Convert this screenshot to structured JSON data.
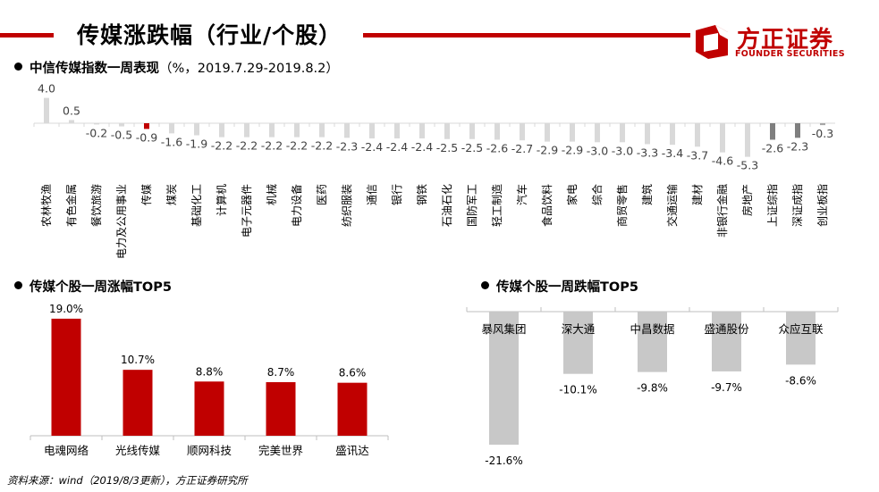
{
  "header": {
    "title": "传媒涨跌幅（行业/个股）"
  },
  "logo": {
    "name_cn": "方正证券",
    "name_en": "FOUNDER SECURITIES"
  },
  "colors": {
    "accent": "#c00000",
    "bar_gray": "#c8c8c8",
    "bar_dark": "#7f7f7f",
    "light_gray": "#d9d9d9"
  },
  "section1": {
    "title": "中信传媒指数一周表现",
    "subtitle": "（%，2019.7.29-2019.8.2）"
  },
  "section2": {
    "title": "传媒个股一周涨幅TOP5"
  },
  "section3": {
    "title": "传媒个股一周跌幅TOP5"
  },
  "footer": {
    "source": "资料来源：wind（2019/8/3更新），方正证券研究所"
  },
  "chart_data": [
    {
      "type": "bar",
      "categories": [
        "农林牧渔",
        "有色金属",
        "餐饮旅游",
        "电力及公用事业",
        "传媒",
        "煤炭",
        "基础化工",
        "计算机",
        "电子元器件",
        "机械",
        "电力设备",
        "医药",
        "纺织服装",
        "通信",
        "银行",
        "钢铁",
        "石油石化",
        "国防军工",
        "轻工制造",
        "汽车",
        "食品饮料",
        "家电",
        "综合",
        "商贸零售",
        "建筑",
        "交通运输",
        "建材",
        "非银行金融",
        "房地产",
        "上证综指",
        "深证成指",
        "创业板指"
      ],
      "values": [
        4.0,
        0.5,
        -0.2,
        -0.5,
        -0.9,
        -1.6,
        -1.9,
        -2.2,
        -2.2,
        -2.2,
        -2.2,
        -2.2,
        -2.3,
        -2.4,
        -2.4,
        -2.4,
        -2.5,
        -2.5,
        -2.6,
        -2.7,
        -2.9,
        -2.9,
        -3.0,
        -3.0,
        -3.3,
        -3.4,
        -3.7,
        -4.6,
        -5.3,
        -2.6,
        -2.3,
        -0.3
      ],
      "labels": [
        "4.0",
        "0.5",
        "-0.2",
        "-0.5",
        "-0.9",
        "-1.6",
        "-1.9",
        "-2.2",
        "-2.2",
        "-2.2",
        "-2.2",
        "-2.2",
        "-2.3",
        "-2.4",
        "-2.4",
        "-2.4",
        "-2.5",
        "-2.5",
        "-2.6",
        "-2.7",
        "-2.9",
        "-2.9",
        "-3.0",
        "-3.0",
        "-3.3",
        "-3.4",
        "-3.7",
        "-4.6",
        "-5.3",
        "-2.6",
        "-2.3",
        "-0.3"
      ],
      "highlight_index": 4,
      "index_indices": [
        29,
        30,
        31
      ]
    },
    {
      "type": "bar",
      "categories": [
        "电魂网络",
        "光线传媒",
        "顺网科技",
        "完美世界",
        "盛讯达"
      ],
      "values": [
        19.0,
        10.7,
        8.8,
        8.7,
        8.6
      ],
      "labels": [
        "19.0%",
        "10.7%",
        "8.8%",
        "8.7%",
        "8.6%"
      ]
    },
    {
      "type": "bar",
      "categories": [
        "暴风集团",
        "深大通",
        "中昌数据",
        "盛通股份",
        "众应互联"
      ],
      "values": [
        -21.6,
        -10.1,
        -9.8,
        -9.7,
        -8.6
      ],
      "labels": [
        "-21.6%",
        "-10.1%",
        "-9.8%",
        "-9.7%",
        "-8.6%"
      ]
    }
  ]
}
